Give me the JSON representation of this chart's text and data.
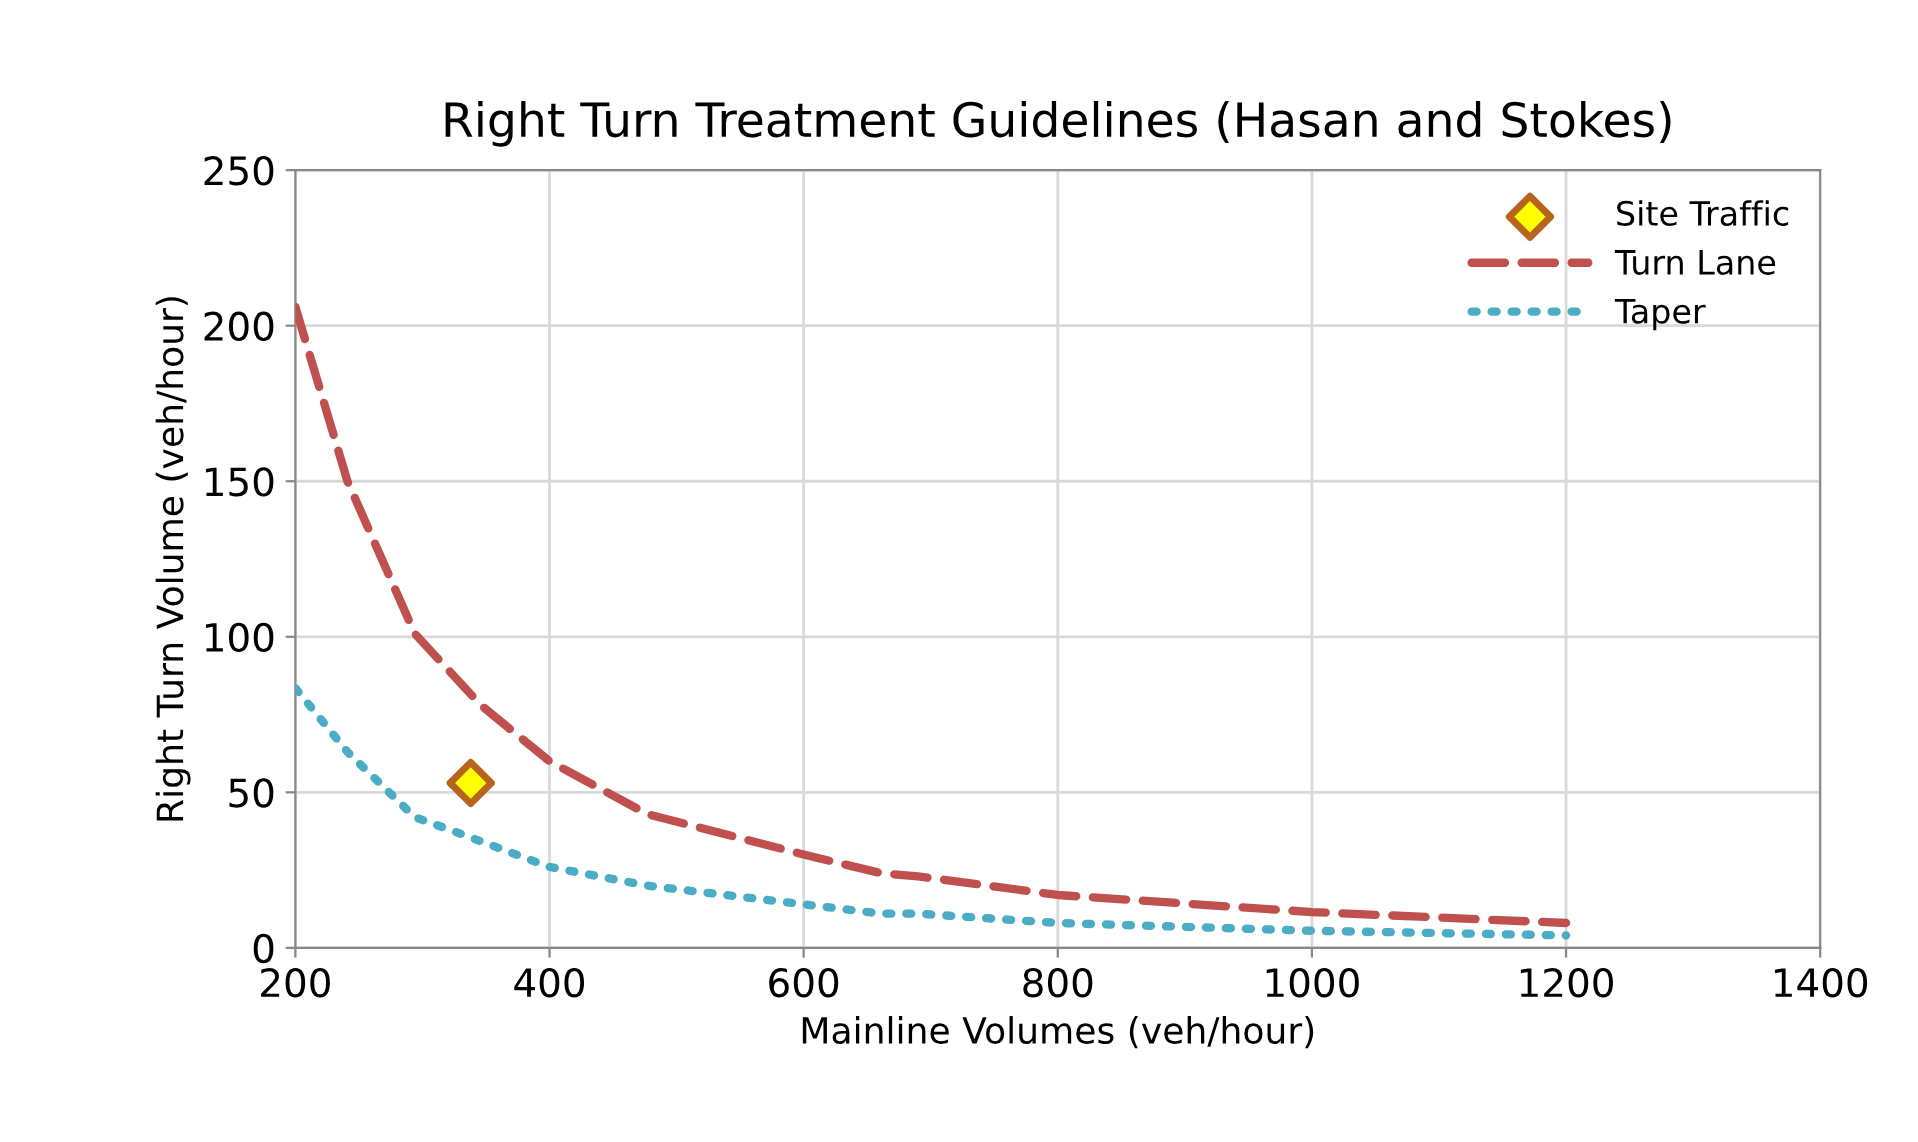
{
  "chart_data": {
    "type": "line",
    "title": "Right Turn Treatment Guidelines (Hasan and Stokes)",
    "xlabel": "Mainline Volumes (veh/hour)",
    "ylabel": "Right Turn Volume (veh/hour)",
    "xlim": [
      200,
      1400
    ],
    "xticks": [
      200,
      400,
      600,
      800,
      1000,
      1200,
      1400
    ],
    "ylim": [
      0,
      250
    ],
    "yticks": [
      0,
      50,
      100,
      150,
      200,
      250
    ],
    "grid": true,
    "legend": "top right",
    "series": [
      {
        "name": "Site Traffic",
        "type": "scatter",
        "marker": "diamond",
        "color": "#ffff00",
        "x": [
          338
        ],
        "values": [
          53
        ]
      },
      {
        "name": "Turn Lane",
        "line_style": "dashed",
        "color": "#c0504d",
        "x": [
          200,
          241,
          294,
          346,
          400,
          477,
          600,
          661,
          690,
          800,
          1000,
          1200
        ],
        "values": [
          206,
          150,
          101,
          78,
          60,
          43,
          30,
          24,
          23,
          17,
          11.5,
          8
        ]
      },
      {
        "name": "Taper",
        "line_style": "dotted",
        "color": "#4bacc6",
        "x": [
          200,
          241,
          294,
          328,
          400,
          477,
          600,
          661,
          690,
          800,
          1000,
          1200
        ],
        "values": [
          83.5,
          63,
          42,
          37,
          26,
          20,
          14,
          11,
          11,
          8,
          5.5,
          4
        ]
      }
    ]
  }
}
